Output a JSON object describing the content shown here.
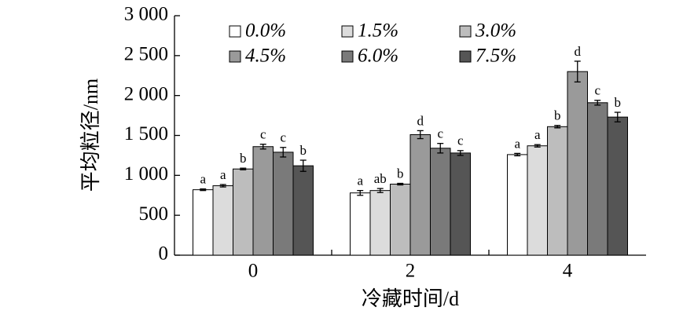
{
  "chart_data": {
    "type": "bar",
    "xlabel": "冷藏时间/d",
    "ylabel": "平均粒径/nm",
    "categories": [
      "0",
      "2",
      "4"
    ],
    "series": [
      {
        "name": "0.0%",
        "color": "#ffffff",
        "values": [
          820,
          780,
          1260
        ],
        "errors": [
          10,
          30,
          15
        ],
        "letters": [
          "a",
          "a",
          "a"
        ]
      },
      {
        "name": "1.5%",
        "color": "#dcdcdc",
        "values": [
          870,
          810,
          1370
        ],
        "errors": [
          15,
          25,
          15
        ],
        "letters": [
          "a",
          "ab",
          "a"
        ]
      },
      {
        "name": "3.0%",
        "color": "#bdbdbd",
        "values": [
          1080,
          890,
          1610
        ],
        "errors": [
          10,
          10,
          15
        ],
        "letters": [
          "b",
          "b",
          "b"
        ]
      },
      {
        "name": "4.5%",
        "color": "#9a9a9a",
        "values": [
          1360,
          1510,
          2300
        ],
        "errors": [
          30,
          50,
          130
        ],
        "letters": [
          "c",
          "d",
          "d"
        ]
      },
      {
        "name": "6.0%",
        "color": "#7a7a7a",
        "values": [
          1290,
          1340,
          1910
        ],
        "errors": [
          60,
          60,
          30
        ],
        "letters": [
          "c",
          "c",
          "c"
        ]
      },
      {
        "name": "7.5%",
        "color": "#555555",
        "values": [
          1120,
          1280,
          1730
        ],
        "errors": [
          70,
          30,
          60
        ],
        "letters": [
          "b",
          "c",
          "b"
        ]
      }
    ],
    "ylim": [
      0,
      3000
    ],
    "yticks": [
      0,
      500,
      {
        "value": 1000,
        "label": "1 000"
      },
      {
        "value": 1500,
        "label": "1 500"
      },
      {
        "value": 2000,
        "label": "2 000"
      },
      {
        "value": 2500,
        "label": "2 500"
      },
      {
        "value": 3000,
        "label": "3 000"
      }
    ]
  }
}
